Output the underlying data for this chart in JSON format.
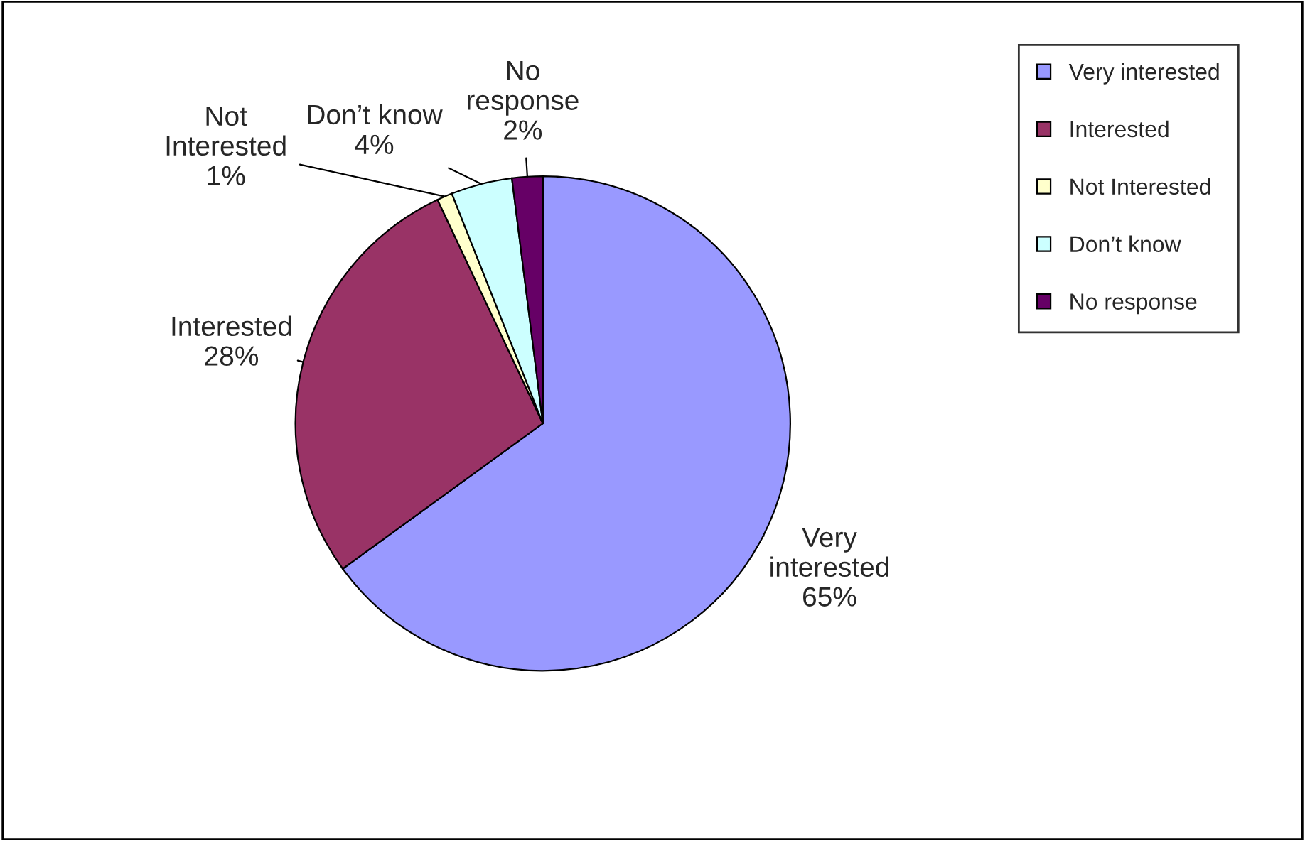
{
  "chart_data": {
    "type": "pie",
    "categories": [
      "Very interested",
      "Interested",
      "Not Interested",
      "Don’t know",
      "No response"
    ],
    "values": [
      65,
      28,
      1,
      4,
      2
    ],
    "value_labels": [
      "65%",
      "28%",
      "1%",
      "4%",
      "2%"
    ],
    "colors": [
      "#9999ff",
      "#993366",
      "#ffffcc",
      "#ccffff",
      "#660066"
    ],
    "legend": "right"
  }
}
